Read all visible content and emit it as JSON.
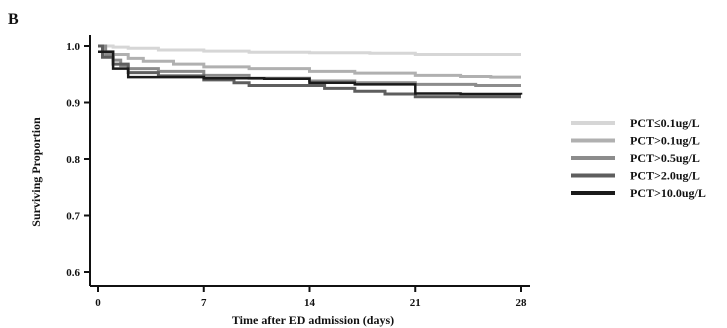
{
  "panel_label": "B",
  "chart_data": {
    "type": "line",
    "title": "",
    "xlabel": "Time after ED admission (days)",
    "ylabel": "Surviving Proportion",
    "xlim": [
      0,
      28
    ],
    "ylim": [
      0.6,
      1.0
    ],
    "x_ticks": [
      0,
      7,
      14,
      21,
      28
    ],
    "x_tick_labels": [
      "0",
      "7",
      "14",
      "21",
      "28"
    ],
    "y_ticks": [
      0.6,
      0.7,
      0.8,
      0.9,
      1.0
    ],
    "y_tick_labels": [
      "0.6",
      "0.7",
      "0.8",
      "0.9",
      "1.0"
    ],
    "grid": false,
    "legend_position": "right",
    "series": [
      {
        "name": "PCT≤0.1ug/L",
        "color": "#d6d6d6",
        "points": [
          [
            0,
            1.0
          ],
          [
            1,
            0.998
          ],
          [
            2,
            0.996
          ],
          [
            4,
            0.993
          ],
          [
            7,
            0.991
          ],
          [
            10,
            0.989
          ],
          [
            14,
            0.988
          ],
          [
            18,
            0.987
          ],
          [
            21,
            0.985
          ],
          [
            24,
            0.985
          ],
          [
            28,
            0.985
          ]
        ]
      },
      {
        "name": "PCT>0.1ug/L",
        "color": "#b0b0b0",
        "points": [
          [
            0,
            1.0
          ],
          [
            0.5,
            0.99
          ],
          [
            1,
            0.985
          ],
          [
            2,
            0.978
          ],
          [
            3,
            0.973
          ],
          [
            5,
            0.968
          ],
          [
            7,
            0.963
          ],
          [
            10,
            0.96
          ],
          [
            14,
            0.955
          ],
          [
            17,
            0.952
          ],
          [
            21,
            0.948
          ],
          [
            24,
            0.946
          ],
          [
            26,
            0.945
          ],
          [
            28,
            0.945
          ]
        ]
      },
      {
        "name": "PCT>0.5ug/L",
        "color": "#8c8c8c",
        "points": [
          [
            0,
            1.0
          ],
          [
            0.5,
            0.985
          ],
          [
            1,
            0.975
          ],
          [
            1.5,
            0.965
          ],
          [
            2,
            0.96
          ],
          [
            4,
            0.955
          ],
          [
            7,
            0.948
          ],
          [
            10,
            0.943
          ],
          [
            14,
            0.938
          ],
          [
            17,
            0.935
          ],
          [
            21,
            0.932
          ],
          [
            25,
            0.93
          ],
          [
            28,
            0.93
          ]
        ]
      },
      {
        "name": "PCT>2.0ug/L",
        "color": "#5e5e5e",
        "points": [
          [
            0,
            1.0
          ],
          [
            0.3,
            0.98
          ],
          [
            1,
            0.968
          ],
          [
            2,
            0.953
          ],
          [
            4,
            0.947
          ],
          [
            7,
            0.94
          ],
          [
            9,
            0.935
          ],
          [
            10,
            0.93
          ],
          [
            14,
            0.93
          ],
          [
            15,
            0.925
          ],
          [
            17,
            0.92
          ],
          [
            19,
            0.915
          ],
          [
            21,
            0.91
          ],
          [
            25,
            0.91
          ],
          [
            28,
            0.91
          ]
        ]
      },
      {
        "name": "PCT>10.0ug/L",
        "color": "#1a1a1a",
        "points": [
          [
            0,
            0.99
          ],
          [
            1,
            0.96
          ],
          [
            2,
            0.945
          ],
          [
            5,
            0.945
          ],
          [
            7,
            0.943
          ],
          [
            11,
            0.942
          ],
          [
            14,
            0.935
          ],
          [
            17,
            0.932
          ],
          [
            20,
            0.932
          ],
          [
            21,
            0.916
          ],
          [
            24,
            0.915
          ],
          [
            28,
            0.914
          ]
        ]
      }
    ]
  }
}
